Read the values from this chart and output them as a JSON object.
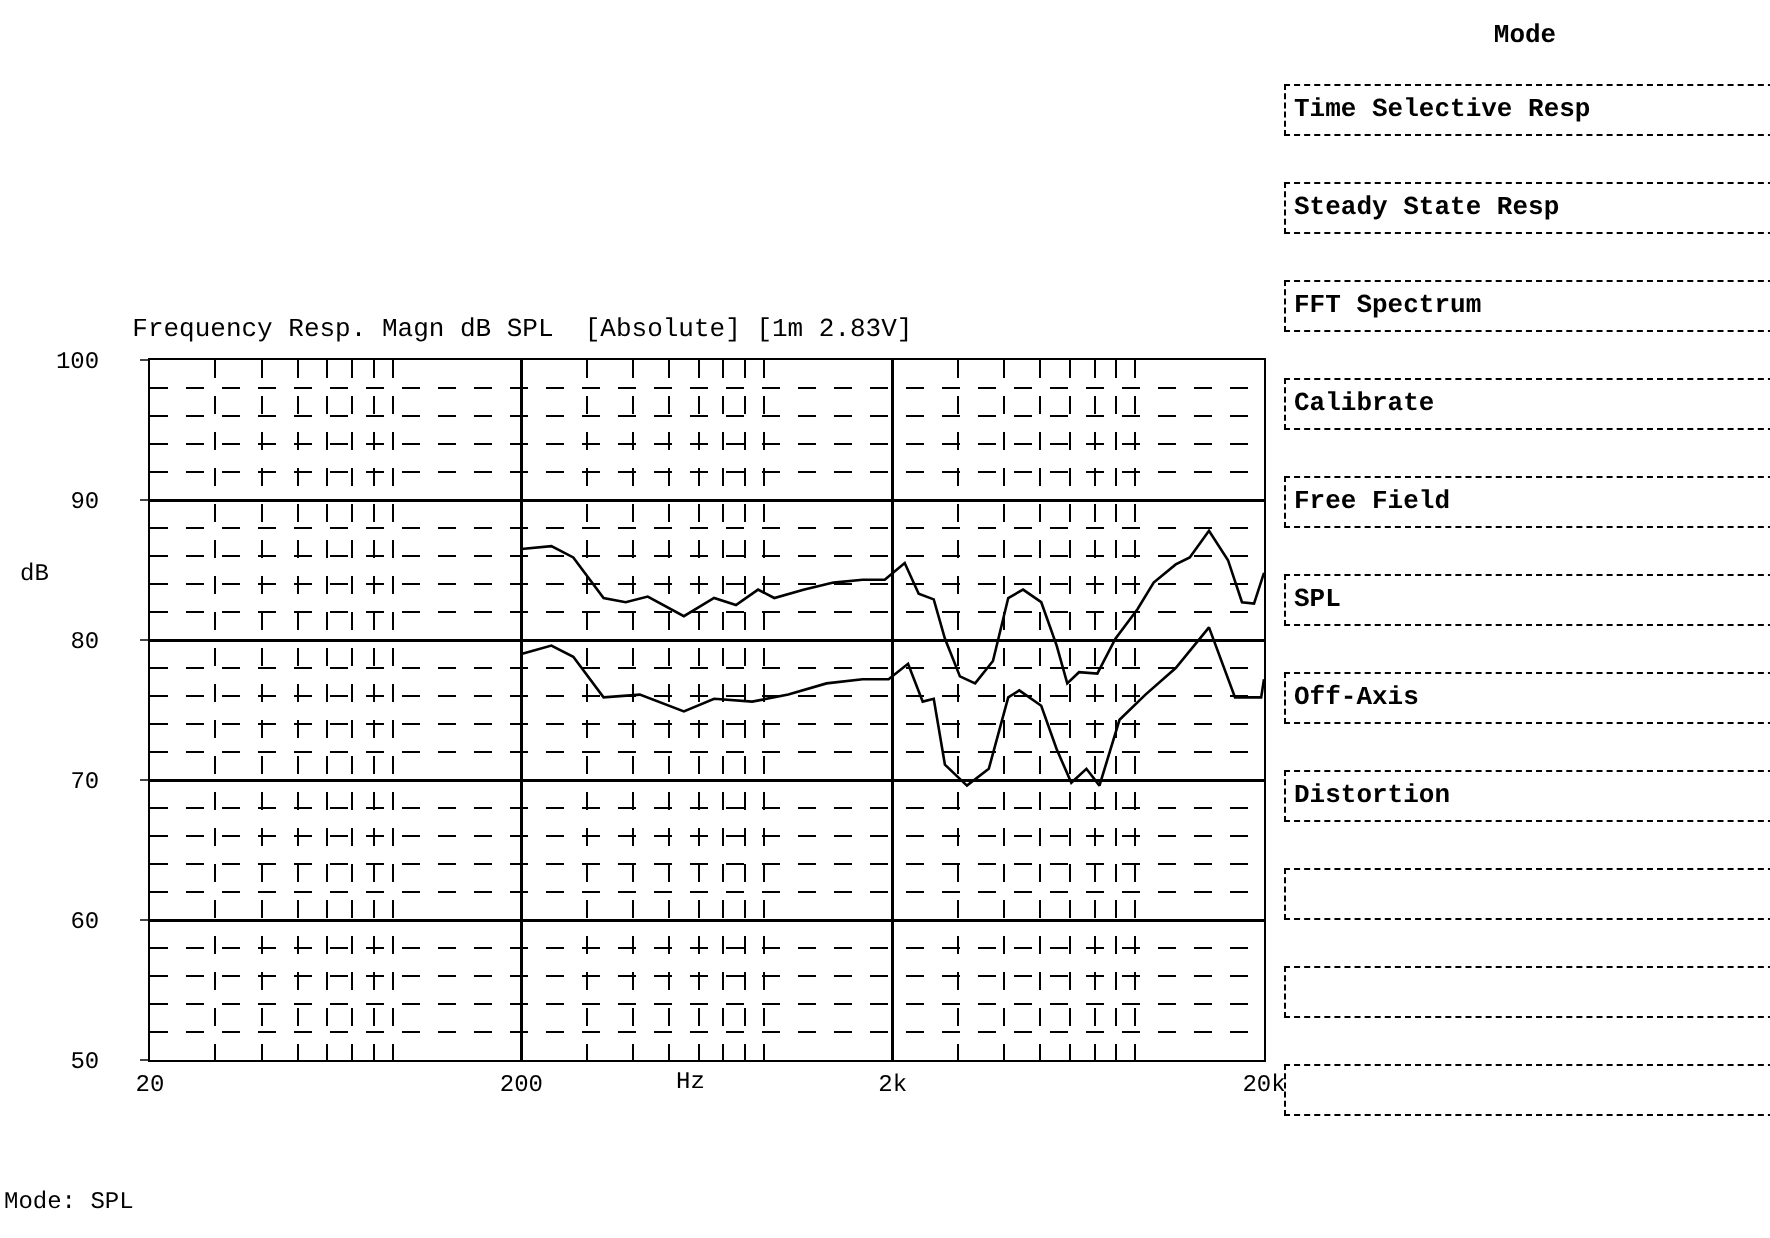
{
  "chart_data": [
    {
      "type": "line",
      "title": "Frequency Resp. Magn dB SPL  [Absolute] [1m 2.83V]",
      "xlabel": "Hz",
      "ylabel": "dB",
      "log": "x",
      "xlim": [
        20,
        20000
      ],
      "xticks": [
        20,
        200,
        {
          "value": 2000,
          "label": "2k"
        },
        {
          "value": 20000,
          "label": "20k"
        }
      ],
      "ylim": [
        50,
        100
      ],
      "yticks": [
        50,
        60,
        70,
        80,
        90,
        100
      ],
      "grid": true,
      "marker": "none",
      "line_style": "solid",
      "annotations": [
        "Mode: SPL"
      ],
      "series": [
        {
          "color": "#000000",
          "x": [
            200,
            241,
            276,
            333,
            382,
            438,
            548,
            661,
            757,
            868,
            960,
            1157,
            1385,
            1660,
            1904,
            2155,
            2350,
            2580,
            2765,
            3035,
            3335,
            3725,
            4095,
            4490,
            5025,
            5530,
            5905,
            6350,
            7115,
            7960,
            9125,
            10090,
            11570,
            12620,
            14220,
            16000,
            17450,
            18800,
            20000
          ],
          "values": [
            86.5,
            86.7,
            85.9,
            83.0,
            82.7,
            83.1,
            81.7,
            83.0,
            82.5,
            83.6,
            83.0,
            83.6,
            84.1,
            84.3,
            84.3,
            85.5,
            83.3,
            82.9,
            80.1,
            77.4,
            76.9,
            78.5,
            83.0,
            83.6,
            82.7,
            79.6,
            76.9,
            77.7,
            77.6,
            80.1,
            82.2,
            84.1,
            85.4,
            85.9,
            87.8,
            85.7,
            82.7,
            82.6,
            84.8
          ]
        },
        {
          "color": "#000000",
          "x": [
            200,
            241,
            276,
            333,
            417,
            548,
            661,
            837,
            1047,
            1327,
            1660,
            1950,
            2200,
            2410,
            2580,
            2765,
            3170,
            3630,
            4095,
            4385,
            5025,
            5530,
            6055,
            6650,
            7210,
            8165,
            9590,
            11570,
            14220,
            16710,
            19650,
            20000
          ],
          "values": [
            79.0,
            79.6,
            78.8,
            75.9,
            76.1,
            74.9,
            75.8,
            75.6,
            76.1,
            76.9,
            77.2,
            77.2,
            78.3,
            75.6,
            75.8,
            71.1,
            69.6,
            70.8,
            75.9,
            76.4,
            75.3,
            72.2,
            69.8,
            70.8,
            69.6,
            74.3,
            76.1,
            78.0,
            80.9,
            75.9,
            75.9,
            77.2
          ]
        }
      ]
    },
    {
      "type": "other",
      "title": "Mode",
      "annotations": [
        "Time Selective Resp",
        "Steady State Resp",
        "FFT Spectrum",
        "Calibrate",
        "Free Field",
        "SPL",
        "Off-Axis",
        "Distortion",
        null,
        null,
        null
      ]
    }
  ]
}
